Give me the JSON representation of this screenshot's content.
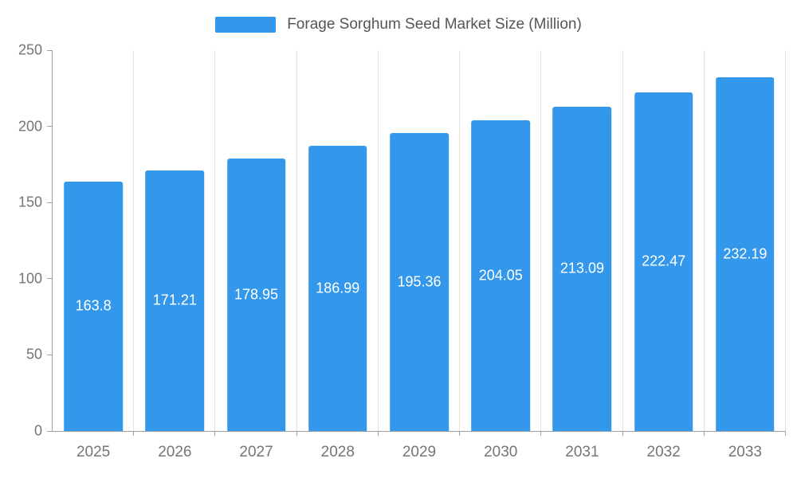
{
  "chart_data": {
    "type": "bar",
    "title": "Forage Sorghum Seed Market Size (Million)",
    "categories": [
      "2025",
      "2026",
      "2027",
      "2028",
      "2029",
      "2030",
      "2031",
      "2032",
      "2033"
    ],
    "values": [
      163.8,
      171.21,
      178.95,
      186.99,
      195.36,
      204.05,
      213.09,
      222.47,
      232.19
    ],
    "bar_labels": [
      "163.8",
      "171.21",
      "178.95",
      "186.99",
      "195.36",
      "204.05",
      "213.09",
      "222.47",
      "232.19"
    ],
    "xlabel": "",
    "ylabel": "",
    "ylim": [
      0,
      250
    ],
    "yticks": [
      "0",
      "50",
      "100",
      "150",
      "200",
      "250"
    ],
    "grid": "vertical-category-lines",
    "legend_position": "top-center",
    "bar_color": "#3398ec",
    "bar_label_color": "#ffffff",
    "axis_text_color": "#757575",
    "title_color": "#555555"
  }
}
